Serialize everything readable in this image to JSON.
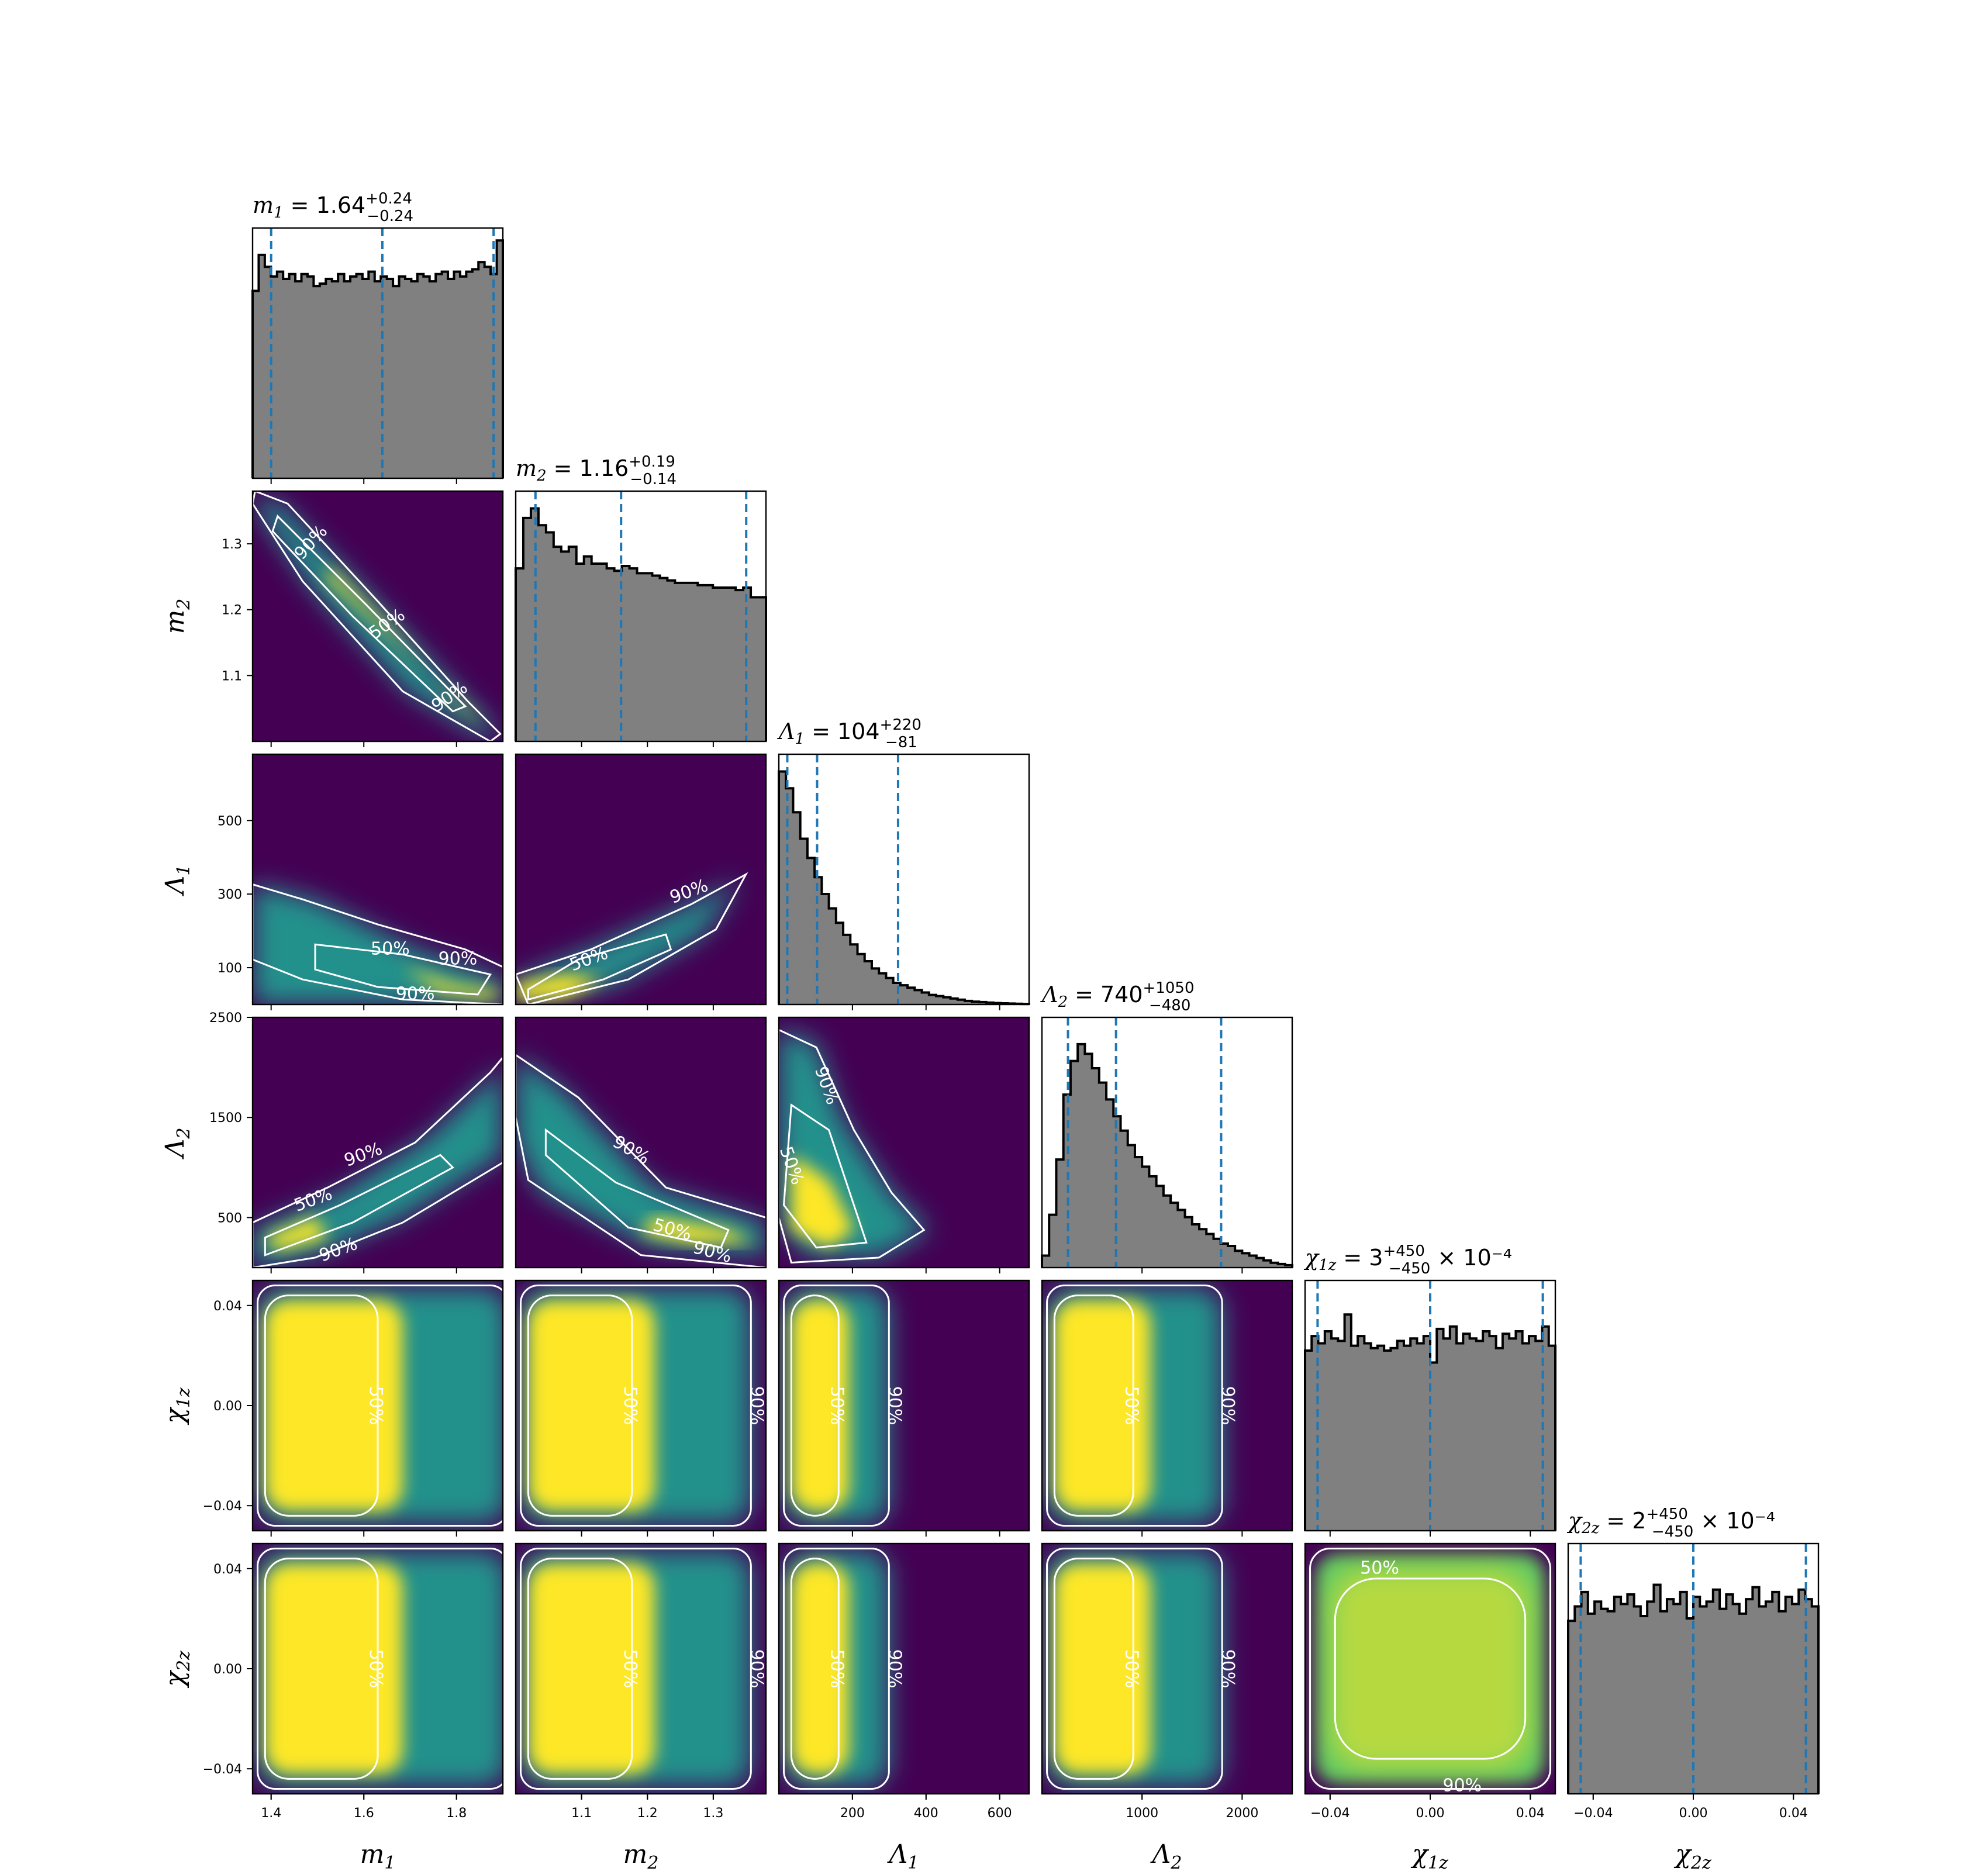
{
  "chart_data": {
    "type": "corner",
    "parameters": [
      {
        "key": "m1",
        "sym": "m",
        "sub": "1",
        "title_value": "1.64",
        "plus": "+0.24",
        "minus": "−0.24",
        "scale_note": "",
        "range": [
          1.36,
          1.9
        ],
        "ticks": [
          1.4,
          1.6,
          1.8
        ],
        "tick_labels": [
          "1.4",
          "1.6",
          "1.8"
        ],
        "quantiles": [
          1.4,
          1.64,
          1.88
        ],
        "hist": [
          0.78,
          0.93,
          0.88,
          0.84,
          0.86,
          0.83,
          0.85,
          0.82,
          0.85,
          0.84,
          0.8,
          0.81,
          0.83,
          0.82,
          0.85,
          0.82,
          0.84,
          0.85,
          0.83,
          0.86,
          0.82,
          0.84,
          0.83,
          0.8,
          0.84,
          0.83,
          0.82,
          0.85,
          0.84,
          0.82,
          0.85,
          0.86,
          0.83,
          0.86,
          0.84,
          0.86,
          0.87,
          0.9,
          0.88,
          0.85,
          0.99
        ]
      },
      {
        "key": "m2",
        "sym": "m",
        "sub": "2",
        "title_value": "1.16",
        "plus": "+0.19",
        "minus": "−0.14",
        "scale_note": "",
        "range": [
          1.0,
          1.38
        ],
        "ticks": [
          1.1,
          1.2,
          1.3
        ],
        "tick_labels": [
          "1.1",
          "1.2",
          "1.3"
        ],
        "quantiles": [
          1.03,
          1.16,
          1.35
        ],
        "hist": [
          0.72,
          0.93,
          0.97,
          0.9,
          0.87,
          0.81,
          0.79,
          0.81,
          0.74,
          0.77,
          0.74,
          0.74,
          0.72,
          0.71,
          0.73,
          0.72,
          0.7,
          0.7,
          0.69,
          0.68,
          0.67,
          0.66,
          0.66,
          0.66,
          0.65,
          0.65,
          0.64,
          0.64,
          0.64,
          0.63,
          0.64,
          0.6,
          0.6
        ]
      },
      {
        "key": "L1",
        "sym": "Λ",
        "sub": "1",
        "title_value": "104",
        "plus": "+220",
        "minus": "−81",
        "scale_note": "",
        "range": [
          0,
          680
        ],
        "ticks": [
          200,
          400,
          600
        ],
        "tick_labels": [
          "200",
          "400",
          "600"
        ],
        "quantiles": [
          23,
          104,
          324
        ],
        "hist": [
          0.97,
          0.9,
          0.8,
          0.69,
          0.61,
          0.53,
          0.46,
          0.4,
          0.34,
          0.29,
          0.25,
          0.21,
          0.18,
          0.15,
          0.13,
          0.11,
          0.09,
          0.08,
          0.07,
          0.06,
          0.05,
          0.04,
          0.035,
          0.03,
          0.025,
          0.02,
          0.015,
          0.012,
          0.01,
          0.008,
          0.006,
          0.005,
          0.004,
          0.003,
          0.002
        ]
      },
      {
        "key": "L2",
        "sym": "Λ",
        "sub": "2",
        "title_value": "740",
        "plus": "+1050",
        "minus": "−480",
        "scale_note": "",
        "range": [
          0,
          2500
        ],
        "ticks": [
          1000,
          2000
        ],
        "tick_labels": [
          "1000",
          "2000"
        ],
        "quantiles": [
          260,
          740,
          1790
        ],
        "hist": [
          0.05,
          0.22,
          0.45,
          0.72,
          0.86,
          0.93,
          0.89,
          0.83,
          0.77,
          0.7,
          0.63,
          0.57,
          0.51,
          0.46,
          0.42,
          0.38,
          0.34,
          0.3,
          0.27,
          0.24,
          0.21,
          0.18,
          0.16,
          0.14,
          0.12,
          0.1,
          0.09,
          0.07,
          0.06,
          0.05,
          0.04,
          0.03,
          0.02,
          0.015,
          0.01
        ]
      },
      {
        "key": "chi1z",
        "sym": "χ",
        "sub": "1z",
        "title_value": "3",
        "plus": "+450",
        "minus": "−450",
        "scale_note": " × 10⁻⁴",
        "range": [
          -0.05,
          0.05
        ],
        "ticks": [
          -0.04,
          0.0,
          0.04
        ],
        "tick_labels": [
          "−0.04",
          "0.00",
          "0.04"
        ],
        "quantiles": [
          -0.045,
          0.0,
          0.045
        ],
        "hist": [
          0.75,
          0.81,
          0.78,
          0.83,
          0.8,
          0.79,
          0.9,
          0.77,
          0.81,
          0.78,
          0.76,
          0.77,
          0.75,
          0.76,
          0.79,
          0.77,
          0.8,
          0.78,
          0.81,
          0.7,
          0.84,
          0.8,
          0.85,
          0.78,
          0.82,
          0.8,
          0.79,
          0.83,
          0.81,
          0.76,
          0.82,
          0.8,
          0.83,
          0.78,
          0.81,
          0.79,
          0.85,
          0.77
        ]
      },
      {
        "key": "chi2z",
        "sym": "χ",
        "sub": "2z",
        "title_value": "2",
        "plus": "+450",
        "minus": "−450",
        "scale_note": " × 10⁻⁴",
        "range": [
          -0.05,
          0.05
        ],
        "ticks": [
          -0.04,
          0.0,
          0.04
        ],
        "tick_labels": [
          "−0.04",
          "0.00",
          "0.04"
        ],
        "quantiles": [
          -0.045,
          0.0,
          0.045
        ],
        "hist": [
          0.72,
          0.78,
          0.84,
          0.75,
          0.8,
          0.77,
          0.76,
          0.82,
          0.79,
          0.83,
          0.78,
          0.74,
          0.8,
          0.87,
          0.76,
          0.81,
          0.79,
          0.84,
          0.73,
          0.82,
          0.78,
          0.8,
          0.85,
          0.77,
          0.83,
          0.79,
          0.75,
          0.81,
          0.86,
          0.78,
          0.8,
          0.84,
          0.76,
          0.82,
          0.79,
          0.85,
          0.81,
          0.78
        ]
      }
    ],
    "y_axis_ticks": {
      "m2": {
        "ticks": [
          1.1,
          1.2,
          1.3
        ],
        "labels": [
          "1.1",
          "1.2",
          "1.3"
        ]
      },
      "L1": {
        "ticks": [
          100,
          300,
          500
        ],
        "labels": [
          "100",
          "300",
          "500"
        ]
      },
      "L2": {
        "ticks": [
          500,
          1500,
          2500
        ],
        "labels": [
          "500",
          "1500",
          "2500"
        ]
      },
      "chi1z": {
        "ticks": [
          -0.04,
          0.0,
          0.04
        ],
        "labels": [
          "−0.04",
          "0.00",
          "0.04"
        ]
      },
      "chi2z": {
        "ticks": [
          -0.04,
          0.0,
          0.04
        ],
        "labels": [
          "−0.04",
          "0.00",
          "0.04"
        ]
      }
    },
    "contour_levels": [
      "50%",
      "90%"
    ],
    "colormap": [
      "#440154",
      "#3b528b",
      "#21918c",
      "#5ec962",
      "#fde725"
    ],
    "hist_color": "#808080",
    "quantile_line_color": "#1f77b4"
  }
}
